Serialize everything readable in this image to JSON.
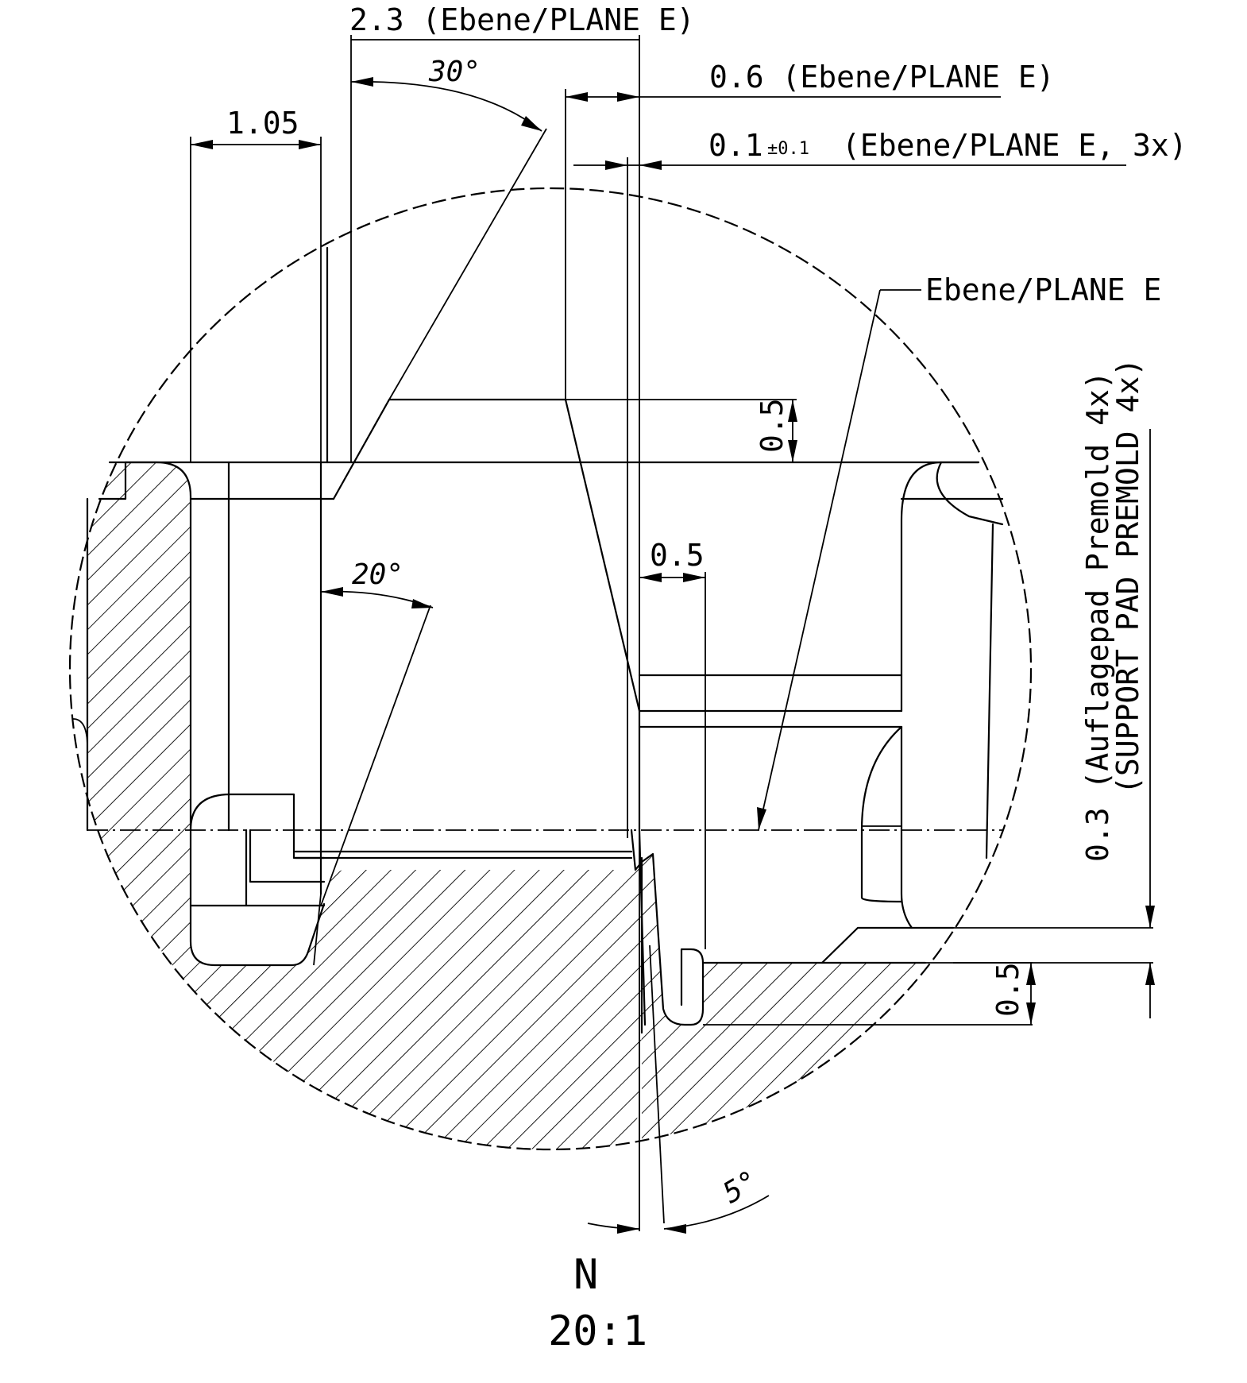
{
  "drawing": {
    "dimensions": {
      "d_2_3": "2.3 (Ebene/PLANE E)",
      "d_0_6": "0.6 (Ebene/PLANE E)",
      "d_0_1_value": "0.1",
      "d_0_1_tol": "±0.1",
      "d_0_1_note": "(Ebene/PLANE E, 3x)",
      "d_1_05": "1.05",
      "d_0_5_upper": "0.5",
      "d_0_5_mid": "0.5",
      "d_0_5_lower": "0.5",
      "d_0_3_line1": "0.3 (Auflagepad Premold 4x)",
      "d_0_3_line2": "(SUPPORT PAD PREMOLD 4x)"
    },
    "angles": {
      "a_30": "30°",
      "a_20": "20°",
      "a_5": "5°"
    },
    "leader_label": "Ebene/PLANE E",
    "view": {
      "label": "N",
      "scale": "20:1"
    }
  }
}
